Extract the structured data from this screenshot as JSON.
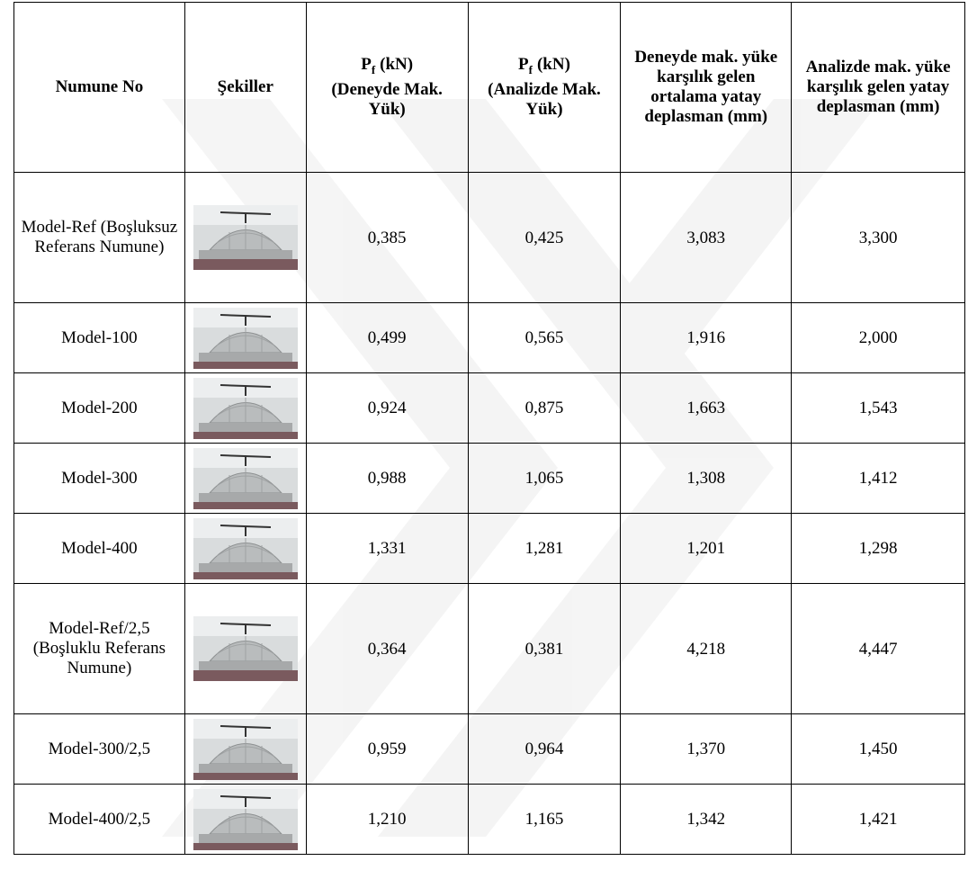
{
  "table": {
    "header": [
      {
        "text": "Numune No"
      },
      {
        "text": "Şekiller"
      },
      {
        "symbol": "P",
        "sub": "f",
        "unit": "(kN)",
        "note": "(Deneyde Mak. Yük)"
      },
      {
        "symbol": "P",
        "sub": "f",
        "unit": "(kN)",
        "note": "(Analizde Mak. Yük)"
      },
      {
        "text": "Deneyde mak. yüke karşılık gelen ortalama yatay deplasman (mm)"
      },
      {
        "text": "Analizde mak. yüke karşılık gelen yatay deplasman (mm)"
      }
    ],
    "rows": [
      [
        "Model-Ref (Boşluksuz Referans Numune)",
        "0,385",
        "0,425",
        "3,083",
        "3,300"
      ],
      [
        "Model-100",
        "0,499",
        "0,565",
        "1,916",
        "2,000"
      ],
      [
        "Model-200",
        "0,924",
        "0,875",
        "1,663",
        "1,543"
      ],
      [
        "Model-300",
        "0,988",
        "1,065",
        "1,308",
        "1,412"
      ],
      [
        "Model-400",
        "1,331",
        "1,281",
        "1,201",
        "1,298"
      ],
      [
        "Model-Ref/2,5 (Boşluklu Referans Numune)",
        "0,364",
        "0,381",
        "4,218",
        "4,447"
      ],
      [
        "Model-300/2,5",
        "0,959",
        "0,964",
        "1,370",
        "1,450"
      ],
      [
        "Model-400/2,5",
        "1,210",
        "1,165",
        "1,342",
        "1,421"
      ]
    ]
  }
}
